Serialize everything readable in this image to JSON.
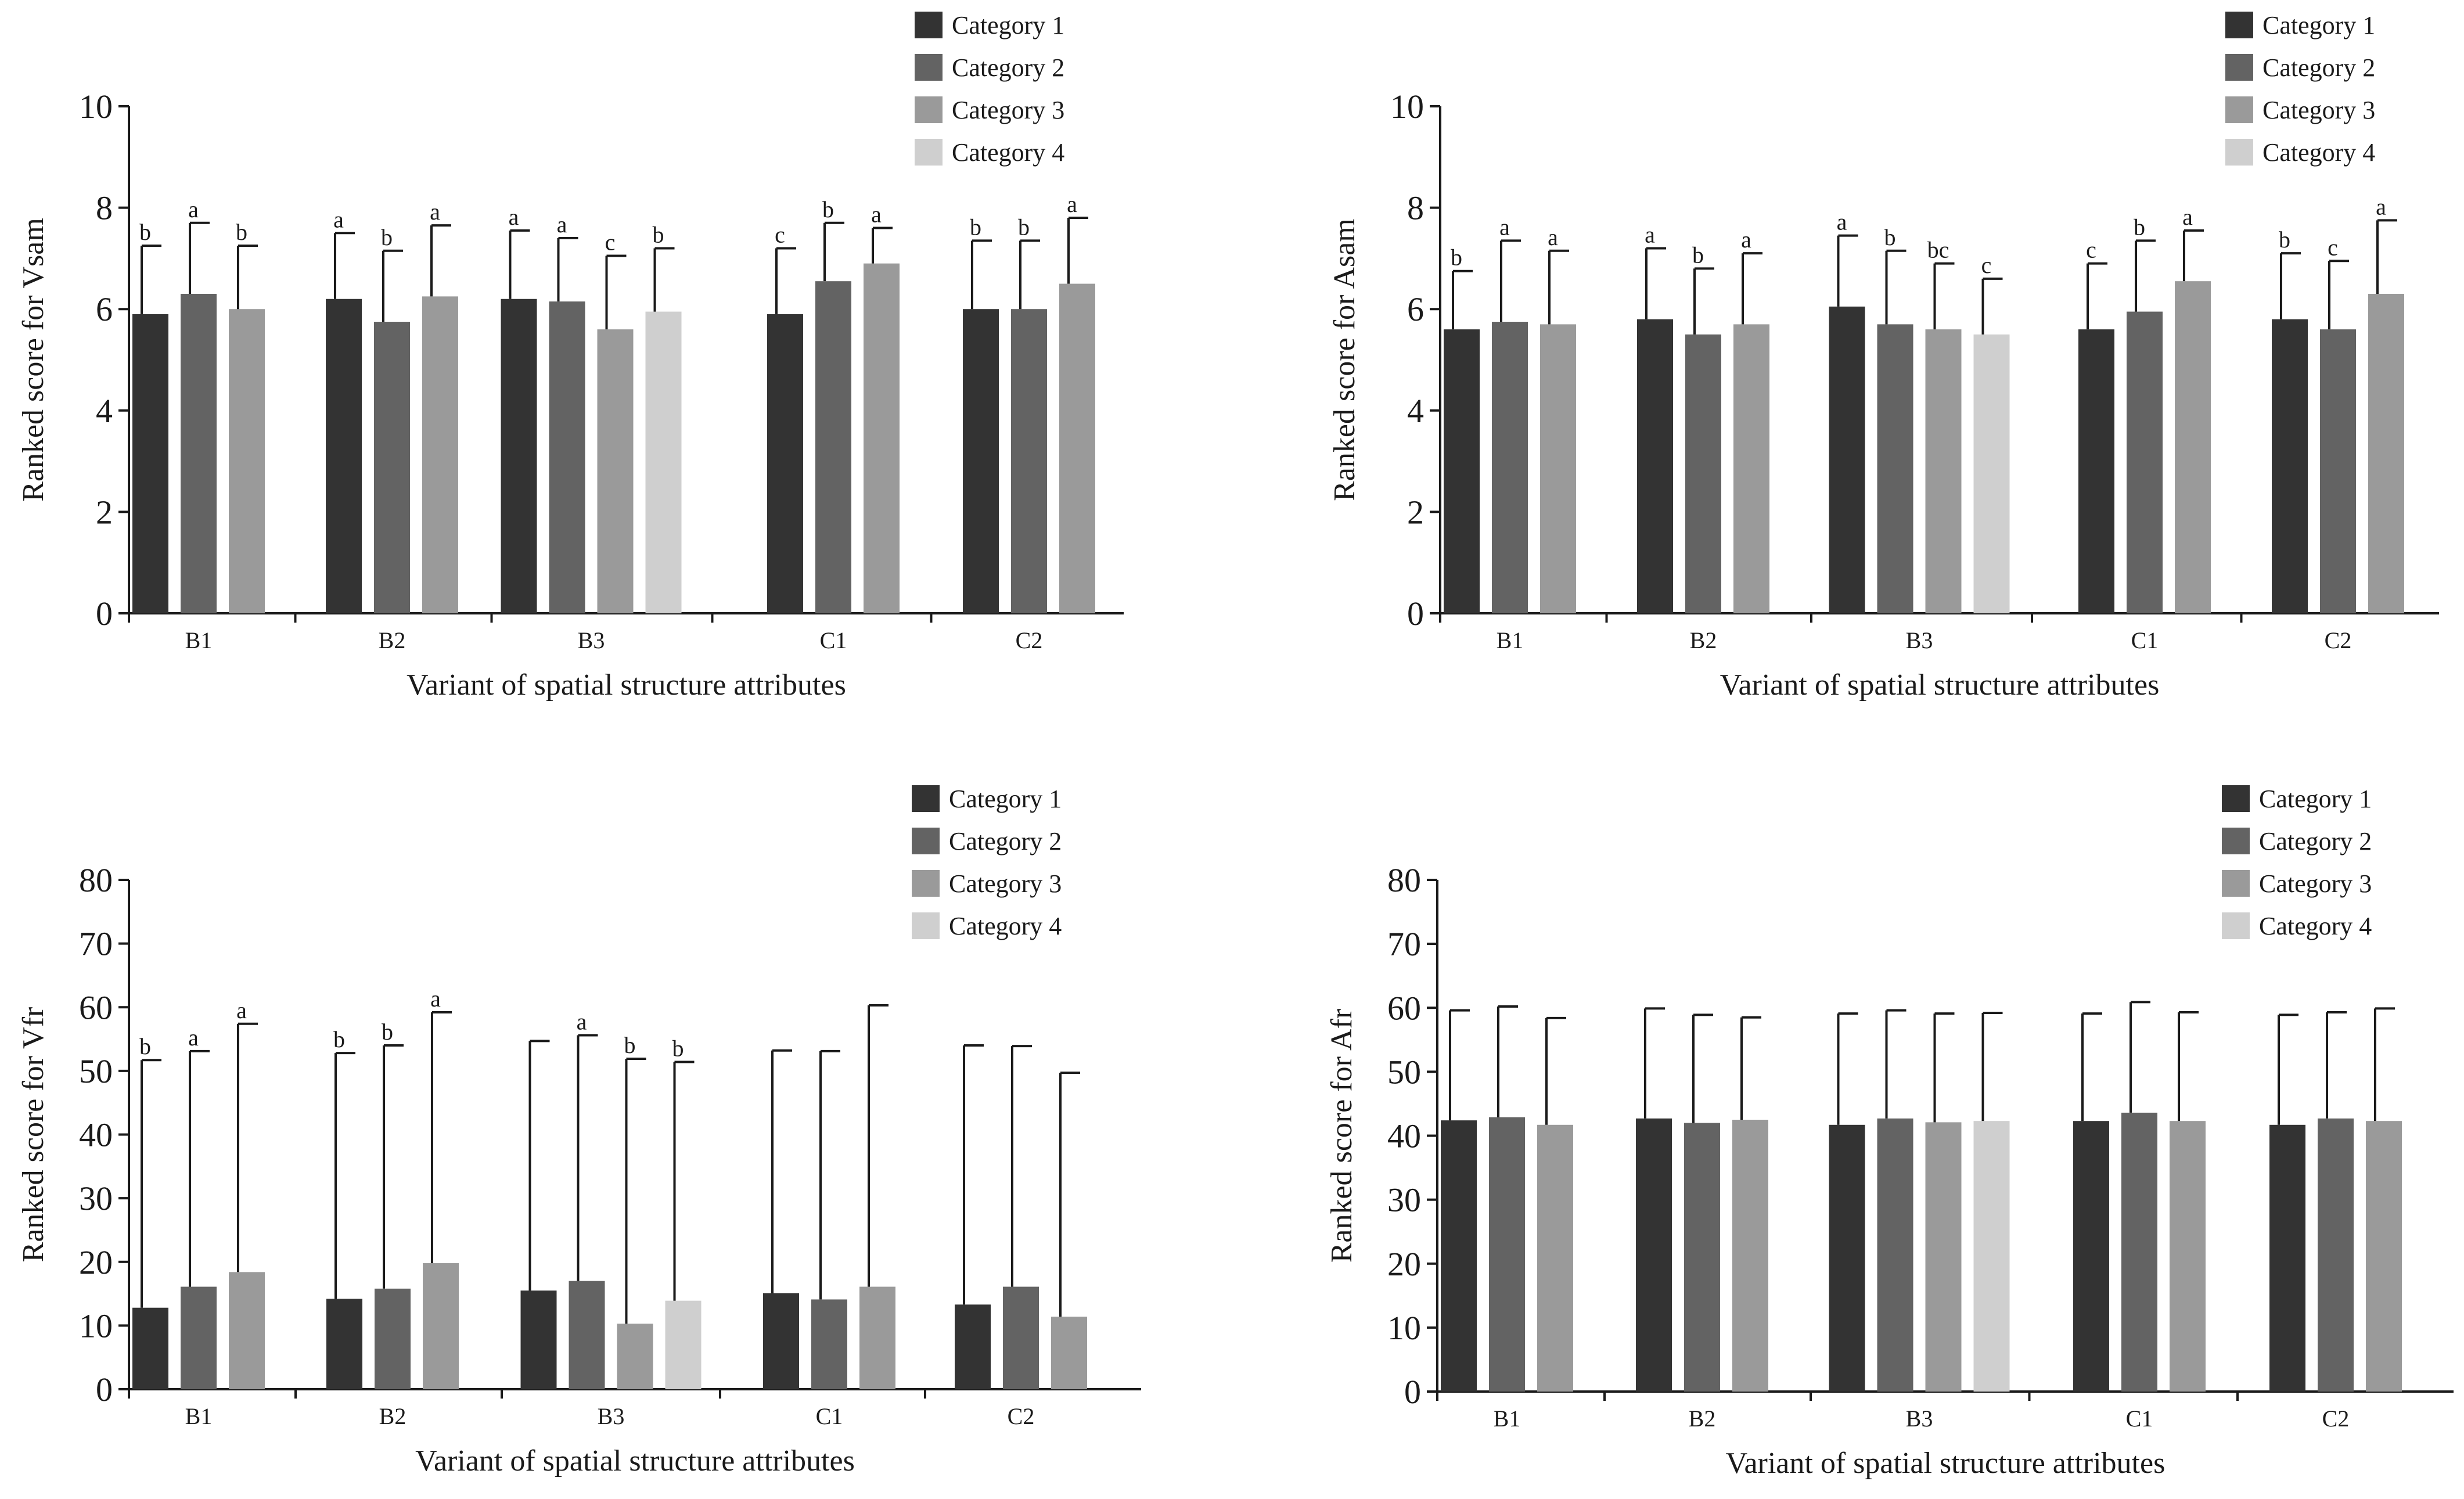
{
  "colors": {
    "Category 1": "#333333",
    "Category 2": "#636363",
    "Category 3": "#9a9a9a",
    "Category 4": "#cfcfcf",
    "axis": "#1a1a1a",
    "error": "#1a1a1a"
  },
  "chart_data": [
    {
      "id": "vsam",
      "type": "bar",
      "xlabel": "Variant of spatial structure attributes",
      "ylabel": "Ranked score for Vsam",
      "ylim": [
        0,
        10
      ],
      "yticks": [
        0,
        2,
        4,
        6,
        8,
        10
      ],
      "categories": [
        "B1",
        "B2",
        "B3",
        "C1",
        "C2"
      ],
      "series": [
        {
          "name": "Category 1",
          "values": [
            5.9,
            6.2,
            6.2,
            5.9,
            6.0
          ],
          "errors": [
            1.35,
            1.3,
            1.35,
            1.3,
            1.35
          ],
          "labels": [
            "b",
            "a",
            "a",
            "c",
            "b"
          ]
        },
        {
          "name": "Category 2",
          "values": [
            6.3,
            5.75,
            6.15,
            6.55,
            6.0
          ],
          "errors": [
            1.4,
            1.4,
            1.25,
            1.15,
            1.35
          ],
          "labels": [
            "a",
            "b",
            "a",
            "b",
            "b"
          ]
        },
        {
          "name": "Category 3",
          "values": [
            6.0,
            6.25,
            5.6,
            6.9,
            6.5
          ],
          "errors": [
            1.25,
            1.4,
            1.45,
            0.7,
            1.3
          ],
          "labels": [
            "b",
            "a",
            "c",
            "a",
            "a"
          ]
        },
        {
          "name": "Category 4",
          "values": [
            null,
            null,
            5.95,
            null,
            null
          ],
          "errors": [
            null,
            null,
            1.25,
            null,
            null
          ],
          "labels": [
            "",
            "",
            "b",
            "",
            ""
          ]
        }
      ]
    },
    {
      "id": "asam",
      "type": "bar",
      "xlabel": "Variant of spatial structure attributes",
      "ylabel": "Ranked score for Asam",
      "ylim": [
        0,
        10
      ],
      "yticks": [
        0,
        2,
        4,
        6,
        8,
        10
      ],
      "categories": [
        "B1",
        "B2",
        "B3",
        "C1",
        "C2"
      ],
      "series": [
        {
          "name": "Category 1",
          "values": [
            5.6,
            5.8,
            6.05,
            5.6,
            5.8
          ],
          "errors": [
            1.15,
            1.4,
            1.4,
            1.3,
            1.3
          ],
          "labels": [
            "b",
            "a",
            "a",
            "c",
            "b"
          ]
        },
        {
          "name": "Category 2",
          "values": [
            5.75,
            5.5,
            5.7,
            5.95,
            5.6
          ],
          "errors": [
            1.6,
            1.3,
            1.45,
            1.4,
            1.35
          ],
          "labels": [
            "a",
            "b",
            "b",
            "b",
            "c"
          ]
        },
        {
          "name": "Category 3",
          "values": [
            5.7,
            5.7,
            5.6,
            6.55,
            6.3
          ],
          "errors": [
            1.45,
            1.4,
            1.3,
            1.0,
            1.45
          ],
          "labels": [
            "a",
            "a",
            "bc",
            "a",
            "a"
          ]
        },
        {
          "name": "Category 4",
          "values": [
            null,
            null,
            5.5,
            null,
            null
          ],
          "errors": [
            null,
            null,
            1.1,
            null,
            null
          ],
          "labels": [
            "",
            "",
            "c",
            "",
            ""
          ]
        }
      ]
    },
    {
      "id": "vfr",
      "type": "bar",
      "xlabel": "Variant of spatial structure attributes",
      "ylabel": "Ranked score for Vfr",
      "ylim": [
        0,
        80
      ],
      "yticks": [
        0,
        10,
        20,
        30,
        40,
        50,
        60,
        70,
        80
      ],
      "categories": [
        "B1",
        "B2",
        "B3",
        "C1",
        "C2"
      ],
      "series": [
        {
          "name": "Category 1",
          "values": [
            12.8,
            14.2,
            15.5,
            15.1,
            13.3
          ],
          "errors": [
            38.9,
            38.6,
            39.2,
            38.1,
            40.7
          ],
          "labels": [
            "b",
            "b",
            "",
            "",
            ""
          ]
        },
        {
          "name": "Category 2",
          "values": [
            16.1,
            15.8,
            17.0,
            14.1,
            16.1
          ],
          "errors": [
            37.0,
            38.2,
            38.6,
            39.0,
            37.8
          ],
          "labels": [
            "a",
            "b",
            "a",
            "",
            ""
          ]
        },
        {
          "name": "Category 3",
          "values": [
            18.4,
            19.8,
            10.3,
            16.1,
            11.4
          ],
          "errors": [
            39.0,
            39.4,
            41.6,
            44.2,
            38.3
          ],
          "labels": [
            "a",
            "a",
            "b",
            "",
            ""
          ]
        },
        {
          "name": "Category 4",
          "values": [
            null,
            null,
            13.9,
            null,
            null
          ],
          "errors": [
            null,
            null,
            37.5,
            null,
            null
          ],
          "labels": [
            "",
            "",
            "b",
            "",
            ""
          ]
        }
      ]
    },
    {
      "id": "afr",
      "type": "bar",
      "xlabel": "Variant of spatial structure attributes",
      "ylabel": "Ranked score for Afr",
      "ylim": [
        0,
        80
      ],
      "yticks": [
        0,
        10,
        20,
        30,
        40,
        50,
        60,
        70,
        80
      ],
      "categories": [
        "B1",
        "B2",
        "B3",
        "C1",
        "C2"
      ],
      "series": [
        {
          "name": "Category 1",
          "values": [
            42.4,
            42.7,
            41.7,
            42.3,
            41.7
          ],
          "errors": [
            17.2,
            17.2,
            17.4,
            16.8,
            17.2
          ],
          "labels": [
            "",
            "",
            "",
            "",
            ""
          ]
        },
        {
          "name": "Category 2",
          "values": [
            42.9,
            42.0,
            42.7,
            43.6,
            42.7
          ],
          "errors": [
            17.3,
            16.9,
            16.9,
            17.3,
            16.6
          ],
          "labels": [
            "",
            "",
            "",
            "",
            ""
          ]
        },
        {
          "name": "Category 3",
          "values": [
            41.7,
            42.5,
            42.1,
            42.3,
            42.3
          ],
          "errors": [
            16.7,
            16.0,
            17.0,
            17.0,
            17.6
          ],
          "labels": [
            "",
            "",
            "",
            "",
            ""
          ]
        },
        {
          "name": "Category 4",
          "values": [
            null,
            null,
            42.3,
            null,
            null
          ],
          "errors": [
            null,
            null,
            16.9,
            null,
            null
          ],
          "labels": [
            "",
            "",
            "",
            "",
            ""
          ]
        }
      ]
    }
  ]
}
